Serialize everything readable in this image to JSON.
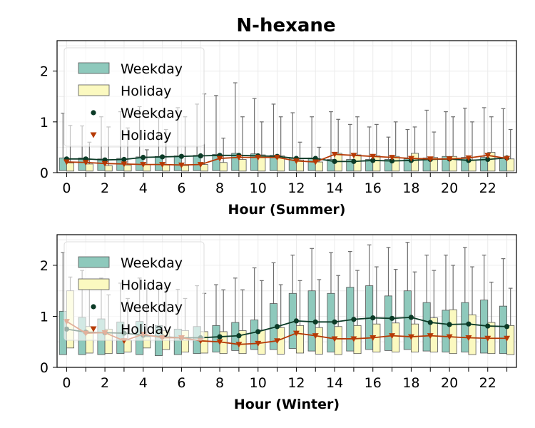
{
  "chart_data": {
    "type": "box",
    "title": "N-hexane",
    "colors": {
      "weekday_box": "#8ec9bc",
      "holiday_box": "#fbf9c0",
      "weekday_line": "#0b3a26",
      "holiday_line": "#b63a05",
      "whisker": "#6e6e6e",
      "grid": "#ebebeb"
    },
    "legend": {
      "placement": "upper-left",
      "entries": [
        "Weekday",
        "Holiday",
        "Weekday",
        "Holiday"
      ]
    },
    "panels": [
      {
        "xlabel": "Hour (Summer)",
        "ylim": [
          0,
          2.6
        ],
        "yticks": [
          0,
          1,
          2
        ],
        "xticks": [
          0,
          2,
          4,
          6,
          8,
          10,
          12,
          14,
          16,
          18,
          20,
          22
        ],
        "hours": [
          0,
          1,
          2,
          3,
          4,
          5,
          6,
          7,
          8,
          9,
          10,
          11,
          12,
          13,
          14,
          15,
          16,
          17,
          18,
          19,
          20,
          21,
          22,
          23
        ],
        "weekday_box": {
          "q1": [
            0.04,
            0.04,
            0.04,
            0.04,
            0.04,
            0.04,
            0.04,
            0.04,
            0.04,
            0.04,
            0.04,
            0.04,
            0.04,
            0.04,
            0.03,
            0.03,
            0.03,
            0.03,
            0.03,
            0.03,
            0.03,
            0.03,
            0.03,
            0.03
          ],
          "q3": [
            0.29,
            0.29,
            0.27,
            0.28,
            0.31,
            0.32,
            0.33,
            0.34,
            0.36,
            0.38,
            0.37,
            0.34,
            0.28,
            0.29,
            0.26,
            0.26,
            0.26,
            0.26,
            0.27,
            0.29,
            0.32,
            0.3,
            0.3,
            0.3
          ],
          "max": [
            1.17,
            0.92,
            1.1,
            1.2,
            1.3,
            1.08,
            1.28,
            1.35,
            1.52,
            1.77,
            1.46,
            1.35,
            1.18,
            1.1,
            1.2,
            0.95,
            0.9,
            0.7,
            0.85,
            1.23,
            1.2,
            1.27,
            1.28,
            1.26
          ]
        },
        "holiday_box": {
          "q1": [
            0.03,
            0.03,
            0.03,
            0.03,
            0.03,
            0.03,
            0.03,
            0.03,
            0.03,
            0.03,
            0.03,
            0.03,
            0.03,
            0.03,
            0.03,
            0.03,
            0.03,
            0.03,
            0.03,
            0.03,
            0.03,
            0.03,
            0.03,
            0.03
          ],
          "q3": [
            0.19,
            0.17,
            0.14,
            0.15,
            0.16,
            0.15,
            0.14,
            0.16,
            0.2,
            0.26,
            0.35,
            0.33,
            0.25,
            0.21,
            0.38,
            0.35,
            0.33,
            0.32,
            0.38,
            0.3,
            0.32,
            0.25,
            0.4,
            0.27
          ],
          "max": [
            0.93,
            0.6,
            0.9,
            0.88,
            0.45,
            0.85,
            1.1,
            1.55,
            0.68,
            1.1,
            1.0,
            1.1,
            0.6,
            0.5,
            1.05,
            1.1,
            0.95,
            1.0,
            0.9,
            0.8,
            1.1,
            1.0,
            1.1,
            0.85
          ]
        },
        "weekday_mean": [
          0.27,
          0.27,
          0.25,
          0.26,
          0.3,
          0.31,
          0.32,
          0.33,
          0.34,
          0.34,
          0.33,
          0.32,
          0.28,
          0.28,
          0.22,
          0.22,
          0.24,
          0.23,
          0.24,
          0.26,
          0.27,
          0.24,
          0.26,
          0.29
        ],
        "holiday_mean": [
          0.21,
          0.2,
          0.18,
          0.17,
          0.16,
          0.16,
          0.15,
          0.16,
          0.28,
          0.3,
          0.3,
          0.3,
          0.23,
          0.21,
          0.36,
          0.34,
          0.32,
          0.3,
          0.28,
          0.27,
          0.27,
          0.29,
          0.34,
          0.28
        ]
      },
      {
        "xlabel": "Hour (Winter)",
        "ylim": [
          0,
          2.6
        ],
        "yticks": [
          0,
          1,
          2
        ],
        "xticks": [
          0,
          2,
          4,
          6,
          8,
          10,
          12,
          14,
          16,
          18,
          20,
          22
        ],
        "hours": [
          0,
          1,
          2,
          3,
          4,
          5,
          6,
          7,
          8,
          9,
          10,
          11,
          12,
          13,
          14,
          15,
          16,
          17,
          18,
          19,
          20,
          21,
          22,
          23
        ],
        "weekday_box": {
          "q1": [
            0.25,
            0.25,
            0.25,
            0.27,
            0.25,
            0.23,
            0.25,
            0.27,
            0.3,
            0.33,
            0.35,
            0.35,
            0.37,
            0.32,
            0.3,
            0.32,
            0.35,
            0.33,
            0.35,
            0.32,
            0.3,
            0.3,
            0.28,
            0.27
          ],
          "q3": [
            1.1,
            0.98,
            0.95,
            0.89,
            0.9,
            0.82,
            0.75,
            0.8,
            0.82,
            0.88,
            0.93,
            1.25,
            1.45,
            1.5,
            1.45,
            1.57,
            1.6,
            1.4,
            1.5,
            1.27,
            1.12,
            1.27,
            1.32,
            1.2
          ],
          "max": [
            2.25,
            1.9,
            1.75,
            1.65,
            1.75,
            1.6,
            1.53,
            1.6,
            1.62,
            1.75,
            1.95,
            2.05,
            2.2,
            2.33,
            2.25,
            2.27,
            2.4,
            2.35,
            2.45,
            2.2,
            2.2,
            2.35,
            2.2,
            2.13
          ]
        },
        "holiday_box": {
          "q1": [
            0.38,
            0.28,
            0.27,
            0.3,
            0.38,
            0.35,
            0.3,
            0.28,
            0.27,
            0.27,
            0.26,
            0.26,
            0.28,
            0.26,
            0.25,
            0.27,
            0.3,
            0.3,
            0.3,
            0.3,
            0.27,
            0.25,
            0.27,
            0.25
          ],
          "q3": [
            1.5,
            0.8,
            0.75,
            0.53,
            0.6,
            0.72,
            0.72,
            0.7,
            0.7,
            0.72,
            0.73,
            0.78,
            0.82,
            0.78,
            0.8,
            0.82,
            0.85,
            0.87,
            0.85,
            0.97,
            1.13,
            1.03,
            0.88,
            0.82
          ],
          "max": [
            1.77,
            1.6,
            1.42,
            1.35,
            1.55,
            1.55,
            1.35,
            1.45,
            1.52,
            1.52,
            1.7,
            1.62,
            1.7,
            1.72,
            1.8,
            1.9,
            1.97,
            1.92,
            1.87,
            1.9,
            2.0,
            1.97,
            1.67,
            1.55
          ]
        },
        "weekday_mean": [
          0.75,
          0.69,
          0.68,
          0.67,
          0.63,
          0.6,
          0.58,
          0.58,
          0.6,
          0.62,
          0.7,
          0.8,
          0.91,
          0.89,
          0.89,
          0.94,
          0.97,
          0.96,
          0.98,
          0.88,
          0.84,
          0.85,
          0.81,
          0.8
        ],
        "holiday_mean": [
          0.9,
          0.67,
          0.68,
          0.52,
          0.65,
          0.58,
          0.58,
          0.52,
          0.5,
          0.45,
          0.47,
          0.52,
          0.67,
          0.62,
          0.56,
          0.56,
          0.58,
          0.62,
          0.6,
          0.62,
          0.6,
          0.58,
          0.57,
          0.57
        ]
      }
    ]
  }
}
